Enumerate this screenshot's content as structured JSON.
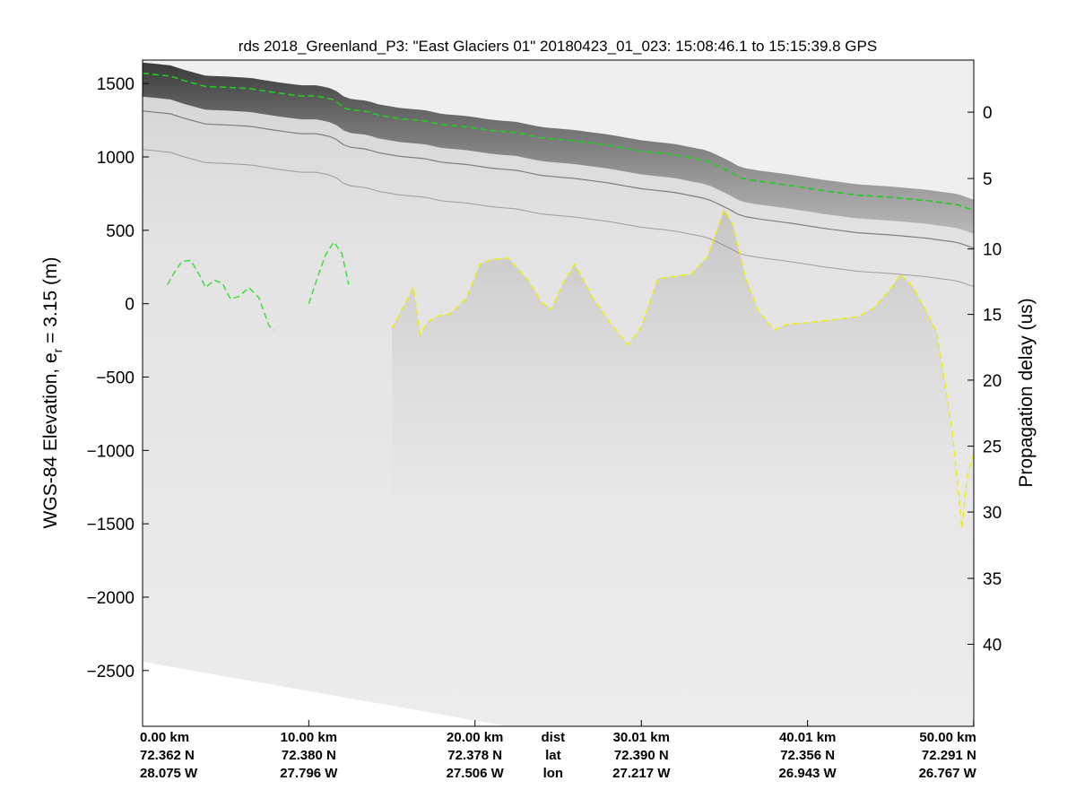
{
  "chart_data": {
    "type": "line",
    "title": "rds 2018_Greenland_P3: \"East Glaciers 01\"  20180423_01_023: 15:08:46.1 to 15:15:39.8 GPS",
    "ylabel_left": {
      "prefix": "WGS-84 Elevation, e",
      "sub": "r",
      "suffix": " = 3.15 (m)"
    },
    "ylabel_right": "Propagation delay (us)",
    "ylim_left": [
      -2880,
      1660
    ],
    "yticks_left": [
      1500,
      1000,
      500,
      0,
      -500,
      -1000,
      -1500,
      -2000,
      -2500
    ],
    "yticks_left_labels": [
      "1500",
      "1000",
      "500",
      "0",
      "−500",
      "−1000",
      "−1500",
      "−2000",
      "−2500"
    ],
    "right_ticks": [
      {
        "label": "0",
        "elev": 1305
      },
      {
        "label": "5",
        "elev": 853
      },
      {
        "label": "10",
        "elev": 373
      },
      {
        "label": "15",
        "elev": -73
      },
      {
        "label": "20",
        "elev": -521
      },
      {
        "label": "25",
        "elev": -971
      },
      {
        "label": "30",
        "elev": -1420
      },
      {
        "label": "35",
        "elev": -1872
      },
      {
        "label": "40",
        "elev": -2321
      }
    ],
    "xlim": [
      0,
      50.01
    ],
    "xaxis_rows": [
      {
        "x": 0.0,
        "dist": "0.00 km",
        "lat": "72.362 N",
        "lon": "28.075 W"
      },
      {
        "x": 10.0,
        "dist": "10.00 km",
        "lat": "72.380 N",
        "lon": "27.796 W"
      },
      {
        "x": 20.0,
        "dist": "20.00 km",
        "lat": "72.378 N",
        "lon": "27.506 W"
      },
      {
        "x": 30.01,
        "dist": "30.01 km",
        "lat": "72.390 N",
        "lon": "27.217 W"
      },
      {
        "x": 40.01,
        "dist": "40.01 km",
        "lat": "72.356 N",
        "lon": "26.943 W"
      },
      {
        "x": 50.0,
        "dist": "50.00 km",
        "lat": "72.291 N",
        "lon": "26.767 W"
      }
    ],
    "xaxis_row_names": {
      "x": 24.7,
      "dist": "dist",
      "lat": "lat",
      "lon": "lon"
    },
    "grid": false,
    "colors": {
      "surface": "#22cc22",
      "bed_green": "#33dd33",
      "bed_yellow": "#eeee00"
    },
    "series": [
      {
        "color": "surface",
        "x": [
          0.0,
          1.7,
          2.5,
          3.8,
          5.0,
          6.5,
          7.3,
          8.5,
          9.5,
          10.5,
          11.5,
          12.2,
          12.6,
          13.5,
          14.2,
          15.5,
          17.0,
          18.0,
          19.5,
          21.0,
          22.5,
          24.0,
          26.0,
          28.0,
          30.0,
          32.0,
          34.0,
          35.3,
          36.0,
          37.0,
          39.0,
          41.0,
          43.0,
          45.0,
          47.0,
          49.0,
          50.01
        ],
        "y": [
          1570,
          1550,
          1520,
          1480,
          1475,
          1465,
          1450,
          1430,
          1415,
          1415,
          1390,
          1330,
          1320,
          1310,
          1285,
          1260,
          1245,
          1220,
          1205,
          1180,
          1165,
          1130,
          1110,
          1080,
          1040,
          1015,
          970,
          900,
          855,
          835,
          805,
          770,
          740,
          725,
          705,
          675,
          635
        ]
      },
      {
        "color": "bed_green",
        "x": [
          1.5,
          2.0,
          2.4,
          2.9,
          3.4,
          3.8,
          4.3,
          4.8,
          5.3,
          5.8,
          6.4,
          7.0,
          7.6,
          7.9
        ],
        "y": [
          130,
          230,
          290,
          295,
          200,
          110,
          160,
          140,
          30,
          50,
          110,
          40,
          -150,
          -180
        ]
      },
      {
        "color": "bed_green",
        "x": [
          10.0,
          10.5,
          11.0,
          11.5,
          12.0,
          12.4
        ],
        "y": [
          0,
          170,
          330,
          420,
          340,
          130
        ]
      },
      {
        "color": "bed_yellow",
        "x": [
          15.0,
          15.6,
          16.3,
          16.7,
          17.2,
          17.9,
          18.5,
          19.5,
          20.3,
          21.0,
          22.0,
          23.2,
          24.0,
          24.6,
          25.3,
          26.0,
          27.2,
          28.2,
          29.2,
          30.0,
          31.0,
          33.0,
          34.0,
          35.0,
          35.5,
          36.3,
          37.0,
          38.0,
          38.8,
          40.0,
          41.5,
          43.0,
          44.0,
          45.0,
          45.6,
          46.3,
          47.0,
          47.8,
          48.7,
          49.3,
          49.6,
          50.01
        ],
        "y": [
          -170,
          -40,
          110,
          -210,
          -120,
          -80,
          -70,
          40,
          270,
          300,
          310,
          160,
          10,
          -40,
          140,
          270,
          20,
          -140,
          -280,
          -160,
          170,
          200,
          320,
          640,
          540,
          170,
          -40,
          -180,
          -140,
          -130,
          -110,
          -90,
          -30,
          100,
          200,
          120,
          -20,
          -200,
          -850,
          -1530,
          -1180,
          -1020
        ]
      }
    ]
  }
}
